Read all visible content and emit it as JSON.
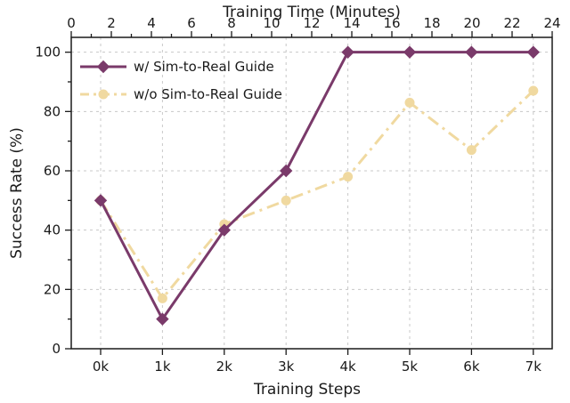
{
  "chart_data": {
    "type": "line",
    "categories": [
      "0k",
      "1k",
      "2k",
      "3k",
      "4k",
      "5k",
      "6k",
      "7k"
    ],
    "series": [
      {
        "name": "w/ Sim-to-Real Guide",
        "color": "#7a3a6a",
        "marker": "diamond",
        "line_style": "solid",
        "values": [
          50,
          10,
          40,
          60,
          100,
          100,
          100,
          100
        ]
      },
      {
        "name": "w/o Sim-to-Real Guide",
        "color": "#f0d9a0",
        "marker": "circle",
        "line_style": "dash-dot",
        "values": [
          50,
          17,
          42,
          50,
          58,
          83,
          67,
          87
        ]
      }
    ],
    "xlabel": "Training Steps",
    "ylabel": "Success Rate (%)",
    "ylim": [
      0,
      105
    ],
    "yticks": [
      0,
      20,
      40,
      60,
      80,
      100
    ],
    "top_axis": {
      "label": "Training Time (Minutes)",
      "range": [
        0,
        24
      ],
      "ticks": [
        0,
        2,
        4,
        6,
        8,
        10,
        12,
        14,
        16,
        18,
        20,
        22,
        24
      ]
    },
    "grid": true,
    "legend_position": "top-left"
  }
}
